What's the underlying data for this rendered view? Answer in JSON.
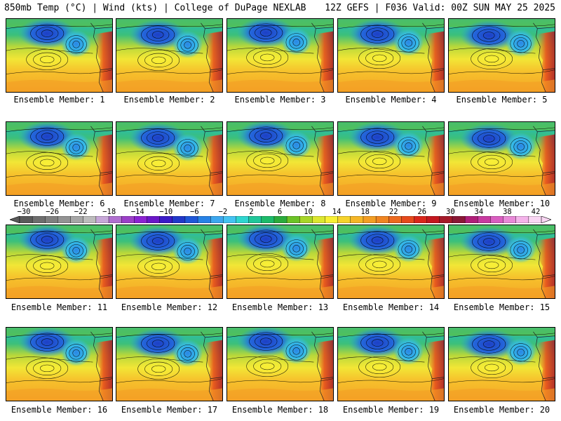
{
  "header": {
    "left": "850mb Temp (°C) | Wind (kts) | College of DuPage NEXLAB",
    "right": "12Z GEFS | F036 Valid: 00Z SUN MAY 25 2025"
  },
  "member_label": "Ensemble Member:",
  "members": [
    "1",
    "2",
    "3",
    "4",
    "5",
    "6",
    "7",
    "8",
    "9",
    "10",
    "11",
    "12",
    "13",
    "14",
    "15",
    "16",
    "17",
    "18",
    "19",
    "20"
  ],
  "colorbar": {
    "labels": [
      "−30",
      "−26",
      "−22",
      "−18",
      "−14",
      "−10",
      "−6",
      "−2",
      "2",
      "6",
      "10",
      "14",
      "18",
      "22",
      "26",
      "30",
      "34",
      "38",
      "42"
    ],
    "colors": [
      "#5a5a5a",
      "#6e6e6e",
      "#7f7f7f",
      "#939393",
      "#a6a6a6",
      "#bcbcbc",
      "#c7a7d8",
      "#b070d0",
      "#9b3fc8",
      "#8c23d2",
      "#6a17c8",
      "#3a1bc8",
      "#2137c9",
      "#1f57d8",
      "#2782e6",
      "#3da7ef",
      "#44c3f2",
      "#2fd6d0",
      "#20c79a",
      "#1dbb6a",
      "#2bab3c",
      "#6cc326",
      "#a8d628",
      "#dce730",
      "#f8f134",
      "#f6d32c",
      "#f5b626",
      "#f39e24",
      "#f08522",
      "#ed6a1f",
      "#e64a1c",
      "#d9261b",
      "#c4171f",
      "#a51a2a",
      "#8a1735",
      "#b01e78",
      "#c83aa0",
      "#d95ec0",
      "#e889d8",
      "#f4b3ea",
      "#f9d6f3"
    ]
  }
}
